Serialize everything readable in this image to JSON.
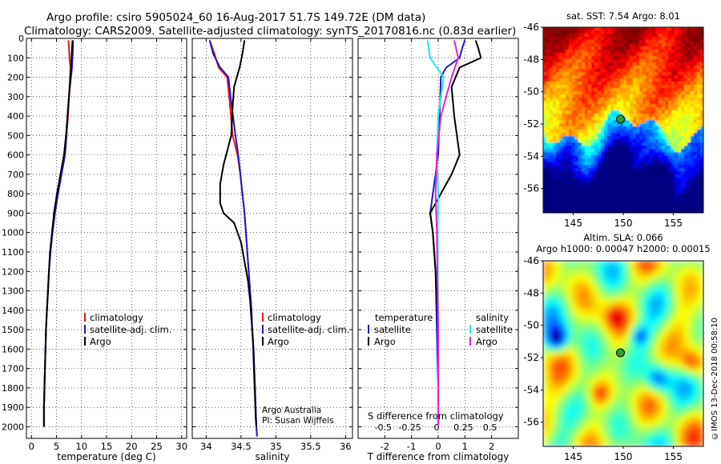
{
  "header": {
    "line1": "Argo profile: csiro 5905024_60 16-Aug-2017 51.7S 149.72E (DM data)",
    "line2": "Climatology: CARS2009. Satellite-adjusted climatology: synTS_20170816.nc (0.83d earlier)"
  },
  "copyright": "©IMOS 13-Dec-2018 00:58:10",
  "credits": {
    "line1": "Argo Australia",
    "line2": "PI: Susan Wijffels"
  },
  "colors": {
    "climatology": "#ee1111",
    "satellite": "#1a1acc",
    "argo": "#000000",
    "sat_salinity": "#22e8e8",
    "argo_salinity": "#e020e0",
    "marker": "#2f9f2f"
  },
  "chart_data": [
    {
      "id": "temperature",
      "type": "line",
      "xlabel": "temperature (deg C)",
      "ylabel": "",
      "xlim": [
        -1,
        31
      ],
      "ylim": [
        2060,
        0
      ],
      "xticks": [
        0,
        5,
        10,
        15,
        20,
        25,
        30
      ],
      "yticks": [
        0,
        100,
        200,
        300,
        400,
        500,
        600,
        700,
        800,
        900,
        1000,
        1100,
        1200,
        1300,
        1400,
        1500,
        1600,
        1700,
        1800,
        1900,
        2000
      ],
      "grid": true,
      "legend": "lower-right",
      "legend_labels": [
        "climatology",
        "satellite-adj. clim.",
        "Argo"
      ],
      "series": [
        {
          "name": "climatology",
          "color": "#ee1111",
          "x": [
            7.4,
            7.5,
            7.6,
            7.8,
            7.7,
            7.5,
            7.3,
            7.0,
            6.7,
            6.0,
            5.3,
            4.7,
            4.2,
            3.8,
            3.5,
            3.3,
            3.1,
            2.9,
            2.8,
            2.7,
            2.6,
            2.5,
            2.5
          ],
          "y": [
            10,
            50,
            100,
            150,
            200,
            300,
            400,
            500,
            600,
            700,
            800,
            900,
            1000,
            1100,
            1200,
            1300,
            1400,
            1500,
            1600,
            1700,
            1800,
            1900,
            2000
          ]
        },
        {
          "name": "satellite-adj. clim.",
          "color": "#1a1acc",
          "x": [
            8.3,
            8.3,
            8.2,
            8.1,
            7.9,
            7.5,
            7.2,
            7.0,
            6.7,
            6.0,
            5.3,
            4.7,
            4.2,
            3.8,
            3.5,
            3.3,
            3.1,
            2.9,
            2.8,
            2.7,
            2.6,
            2.5,
            2.5
          ],
          "y": [
            10,
            50,
            100,
            150,
            200,
            300,
            400,
            500,
            600,
            700,
            800,
            900,
            1000,
            1100,
            1200,
            1300,
            1400,
            1500,
            1600,
            1700,
            1800,
            1900,
            2000
          ]
        },
        {
          "name": "Argo",
          "color": "#000000",
          "x": [
            8.2,
            8.1,
            8.0,
            7.9,
            7.8,
            7.5,
            7.2,
            6.9,
            6.5,
            5.8,
            5.1,
            4.5,
            4.1,
            3.7,
            3.5,
            3.3,
            3.1,
            2.9,
            2.8,
            2.7,
            2.6,
            2.5,
            2.5
          ],
          "y": [
            10,
            50,
            100,
            150,
            200,
            300,
            400,
            500,
            600,
            700,
            800,
            900,
            1000,
            1100,
            1200,
            1300,
            1400,
            1500,
            1600,
            1700,
            1800,
            1900,
            2000
          ]
        }
      ]
    },
    {
      "id": "salinity",
      "type": "line",
      "xlabel": "salinity",
      "ylabel": "",
      "xlim": [
        33.8,
        36.1
      ],
      "ylim": [
        2060,
        0
      ],
      "xticks": [
        34,
        34.5,
        35,
        35.5,
        36
      ],
      "grid": true,
      "legend": "lower-right",
      "legend_labels": [
        "climatology",
        "satellite-adj. clim.",
        "Argo"
      ],
      "series": [
        {
          "name": "climatology",
          "color": "#ee1111",
          "x": [
            34.05,
            34.12,
            34.18,
            34.3,
            34.33,
            34.38,
            34.45,
            34.49,
            34.52,
            34.55,
            34.57,
            34.59,
            34.61,
            34.63,
            34.65,
            34.66,
            34.68,
            34.69,
            34.7,
            34.71,
            34.72,
            34.73
          ],
          "y": [
            10,
            80,
            150,
            200,
            300,
            500,
            600,
            700,
            800,
            900,
            1000,
            1100,
            1200,
            1300,
            1400,
            1500,
            1600,
            1700,
            1800,
            1900,
            2000,
            2050
          ]
        },
        {
          "name": "satellite-adj. clim.",
          "color": "#1a1acc",
          "x": [
            34.05,
            34.1,
            34.2,
            34.32,
            34.35,
            34.42,
            34.46,
            34.49,
            34.52,
            34.55,
            34.57,
            34.59,
            34.61,
            34.63,
            34.65,
            34.66,
            34.68,
            34.69,
            34.7,
            34.71,
            34.72,
            34.73
          ],
          "y": [
            10,
            80,
            150,
            200,
            300,
            500,
            600,
            700,
            800,
            900,
            1000,
            1100,
            1200,
            1300,
            1400,
            1500,
            1600,
            1700,
            1800,
            1900,
            2000,
            2050
          ]
        },
        {
          "name": "Argo",
          "color": "#000000",
          "x": [
            34.55,
            34.52,
            34.48,
            34.4,
            34.38,
            34.36,
            34.25,
            34.2,
            34.2,
            34.25,
            34.4,
            34.5,
            34.55,
            34.6,
            34.63,
            34.65,
            34.67,
            34.68,
            34.69,
            34.7,
            34.71,
            34.72
          ],
          "y": [
            10,
            80,
            150,
            250,
            350,
            500,
            650,
            750,
            850,
            900,
            950,
            1050,
            1150,
            1250,
            1350,
            1450,
            1550,
            1650,
            1750,
            1850,
            1950,
            2000
          ]
        }
      ]
    },
    {
      "id": "difference",
      "type": "line",
      "xlabel": "T difference from climatology",
      "xlabel2": "S difference from climatology",
      "xlim": [
        -3,
        3
      ],
      "ylim": [
        2060,
        0
      ],
      "xticks": [
        -2,
        -1,
        0,
        1,
        2
      ],
      "xtick_labels": [
        "-2",
        "-1",
        "0",
        "1",
        "2"
      ],
      "s_xticks": [
        -0.5,
        -0.25,
        0,
        0.25,
        0.5
      ],
      "s_xtick_labels": [
        "-0.5",
        "-0.25",
        "0",
        "0.25",
        "0.5"
      ],
      "grid": true,
      "legend_titles": [
        "temperature",
        "salinity"
      ],
      "legend_labels": [
        "satellite",
        "Argo",
        "satellite",
        "Argo"
      ],
      "series": [
        {
          "name": "satellite",
          "color": "#1a1acc",
          "x": [
            1.0,
            0.9,
            0.8,
            0.3,
            0.1,
            0.05,
            0.0,
            -0.1,
            -0.2,
            -0.3,
            -0.2,
            -0.1,
            -0.05,
            0.0,
            0.0
          ],
          "y": [
            10,
            50,
            100,
            150,
            200,
            400,
            600,
            700,
            800,
            900,
            1000,
            1200,
            1500,
            1800,
            2000
          ]
        },
        {
          "name": "Argo",
          "color": "#000000",
          "x": [
            1.4,
            1.5,
            1.6,
            0.8,
            0.5,
            0.6,
            0.8,
            0.5,
            0.1,
            -0.3,
            -0.2,
            -0.1,
            0.0,
            0.0,
            0.0
          ],
          "y": [
            10,
            50,
            100,
            150,
            250,
            400,
            600,
            700,
            800,
            900,
            1000,
            1200,
            1500,
            1800,
            2000
          ]
        },
        {
          "name": "satellite",
          "color": "#22e8e8",
          "x": [
            -0.4,
            -0.3,
            0.2,
            0.0,
            -0.05,
            0.0,
            -0.02,
            0.0,
            0.0
          ],
          "y": [
            10,
            100,
            200,
            400,
            600,
            800,
            1000,
            1500,
            2000
          ]
        },
        {
          "name": "Argo",
          "color": "#e020e0",
          "x": [
            0.6,
            0.75,
            0.5,
            0.1,
            -0.05,
            -0.1,
            -0.05,
            0.0,
            0.0
          ],
          "y": [
            10,
            100,
            200,
            400,
            600,
            800,
            1000,
            1500,
            2000
          ]
        }
      ]
    },
    {
      "id": "sst_map",
      "type": "heatmap",
      "title": "sat. SST: 7.54 Argo: 8.01",
      "xlim": [
        142,
        158
      ],
      "ylim": [
        -57.5,
        -46
      ],
      "xticks": [
        145,
        150,
        155
      ],
      "yticks": [
        -46,
        -48,
        -50,
        -52,
        -54,
        -56
      ],
      "marker": {
        "lon": 149.72,
        "lat": -51.7
      }
    },
    {
      "id": "sla_map",
      "type": "heatmap",
      "title": "Altim. SLA: 0.066",
      "subtitle": "Argo h1000: 0.00047 h2000: 0.00015",
      "xlim": [
        142,
        158
      ],
      "ylim": [
        -57.5,
        -46
      ],
      "xticks": [
        145,
        150,
        155
      ],
      "yticks": [
        -46,
        -48,
        -50,
        -52,
        -54,
        -56
      ],
      "marker": {
        "lon": 149.72,
        "lat": -51.7
      }
    }
  ]
}
